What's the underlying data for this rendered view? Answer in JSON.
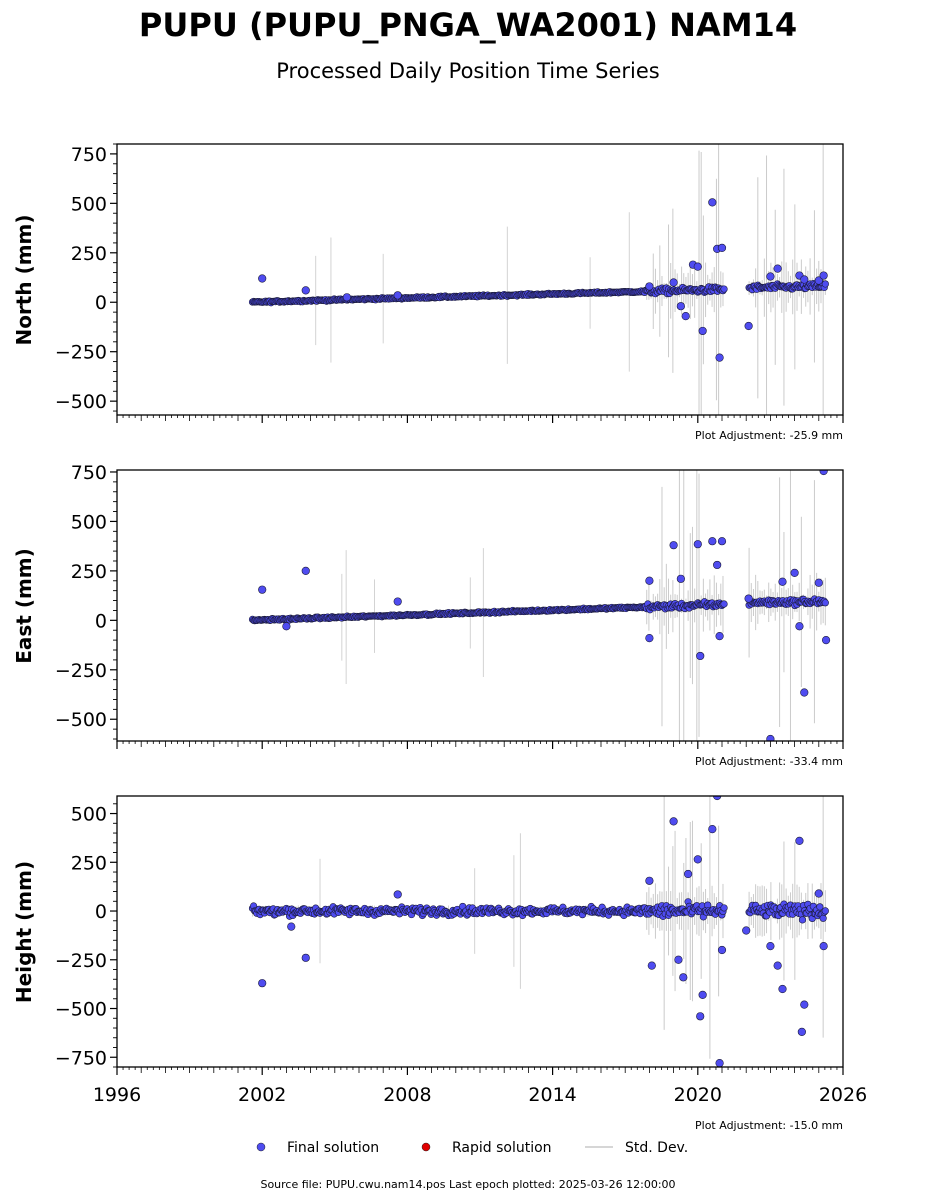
{
  "header": {
    "title": "PUPU (PUPU_PNGA_WA2001) NAM14",
    "subtitle": "Processed Daily Position Time Series"
  },
  "chart_data": [
    {
      "type": "scatter",
      "ylabel": "North (mm)",
      "ylim": [
        -570,
        800
      ],
      "yticks": [
        -500,
        -250,
        0,
        250,
        500,
        750
      ],
      "xlim": [
        1996,
        2026
      ],
      "adjustment": "Plot Adjustment: -25.9 mm",
      "trend": {
        "x": [
          2001.5,
          2021.0,
          2022.2,
          2025.3
        ],
        "y": [
          0,
          65,
          72,
          82
        ]
      },
      "outliers": {
        "x": [
          2002.0,
          2003.8,
          2005.5,
          2007.6,
          2018.0,
          2019.0,
          2019.3,
          2019.5,
          2019.8,
          2020.0,
          2020.2,
          2020.6,
          2020.8,
          2020.9,
          2021.0,
          2022.1,
          2023.0,
          2023.3,
          2024.2,
          2024.4,
          2025.0,
          2025.2
        ],
        "y": [
          120,
          60,
          25,
          35,
          80,
          100,
          -20,
          -70,
          190,
          180,
          -145,
          505,
          270,
          -280,
          275,
          -120,
          130,
          170,
          135,
          115,
          110,
          135
        ]
      }
    },
    {
      "type": "scatter",
      "ylabel": "East (mm)",
      "ylim": [
        -610,
        760
      ],
      "yticks": [
        -500,
        -250,
        0,
        250,
        500,
        750
      ],
      "xlim": [
        1996,
        2026
      ],
      "adjustment": "Plot Adjustment: -33.4 mm",
      "trend": {
        "x": [
          2001.5,
          2021.0,
          2022.2,
          2025.3
        ],
        "y": [
          0,
          80,
          90,
          95
        ]
      },
      "outliers": {
        "x": [
          2002.0,
          2003.0,
          2003.8,
          2007.6,
          2018.0,
          2018.0,
          2019.0,
          2019.3,
          2020.0,
          2020.1,
          2020.6,
          2020.8,
          2020.9,
          2021.0,
          2022.1,
          2023.0,
          2023.5,
          2024.0,
          2024.2,
          2024.4,
          2025.0,
          2025.2,
          2025.3
        ],
        "y": [
          155,
          -30,
          250,
          95,
          200,
          -90,
          380,
          210,
          385,
          -180,
          400,
          280,
          -80,
          400,
          110,
          -600,
          195,
          240,
          -30,
          -365,
          190,
          755,
          -100
        ]
      }
    },
    {
      "type": "scatter",
      "ylabel": "Height (mm)",
      "ylim": [
        -800,
        590
      ],
      "yticks": [
        -750,
        -500,
        -250,
        0,
        250,
        500
      ],
      "xlim": [
        1996,
        2026
      ],
      "xticks": [
        1996,
        2002,
        2008,
        2014,
        2020,
        2026
      ],
      "adjustment": "Plot Adjustment: -15.0 mm",
      "trend": {
        "x": [
          2001.5,
          2025.3
        ],
        "y": [
          0,
          0
        ]
      },
      "outliers": {
        "x": [
          2002.0,
          2003.8,
          2003.2,
          2007.6,
          2018.0,
          2018.1,
          2019.0,
          2019.2,
          2019.4,
          2019.6,
          2020.0,
          2020.1,
          2020.2,
          2020.6,
          2020.8,
          2020.9,
          2021.0,
          2022.0,
          2023.0,
          2023.3,
          2023.5,
          2024.2,
          2024.3,
          2024.4,
          2025.0,
          2025.2
        ],
        "y": [
          -370,
          -240,
          -80,
          85,
          155,
          -280,
          460,
          -250,
          -340,
          190,
          265,
          -540,
          -430,
          420,
          590,
          -780,
          -200,
          -100,
          -180,
          -280,
          -400,
          360,
          -620,
          -480,
          90,
          -180
        ]
      }
    }
  ],
  "legend": {
    "final": "Final solution",
    "rapid": "Rapid solution",
    "std": "Std. Dev."
  },
  "footer": {
    "source": "Source file: PUPU.cwu.nam14.pos  Last epoch plotted: 2025-03-26 12:00:00"
  },
  "colors": {
    "final": "#4f4cf0",
    "rapid": "#e00000",
    "std": "#c8c8c8"
  }
}
